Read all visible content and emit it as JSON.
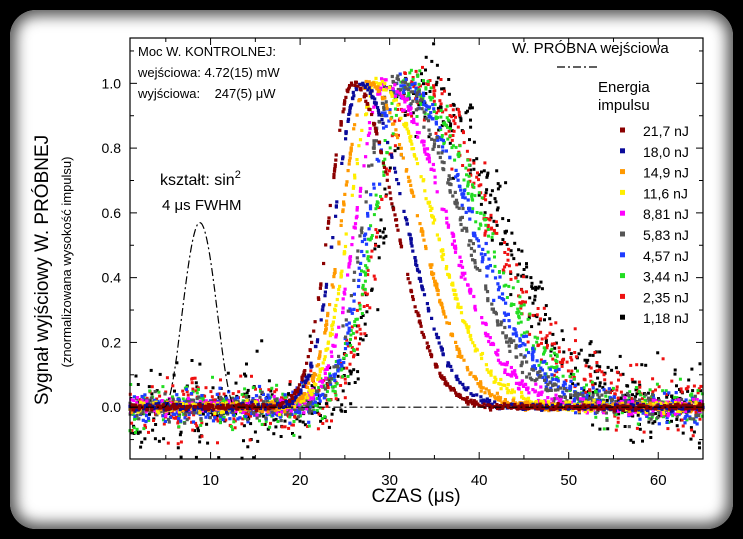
{
  "chart_data": {
    "type": "scatter",
    "xlabel": "CZAS (μs)",
    "ylabel": "Sygnał wyjściowy W. PRÓBNEJ",
    "ylabel2": "(znormalizowana wysokość impulsu)",
    "xlim": [
      1,
      65
    ],
    "ylim": [
      -0.16,
      1.14
    ],
    "xticks": [
      10,
      20,
      30,
      40,
      50,
      60
    ],
    "yticks": [
      0.0,
      0.2,
      0.4,
      0.6,
      0.8,
      1.0
    ],
    "ytick_labels": [
      "0.0",
      "0.2",
      "0.4",
      "0.6",
      "0.8",
      "1.0"
    ],
    "annotation_power": {
      "line1": "Moc W. KONTROLNEJ:",
      "line2": "wejściowa: 4.72(15) mW",
      "line3": "wyjściowa:    247(5) μW"
    },
    "annotation_shape": {
      "line1": "kształt: sin",
      "line1_sup": "2",
      "line2": "4 μs FWHM"
    },
    "input_legend": "W. PRÓBNA wejściowa",
    "legend_title_1": "Energia",
    "legend_title_2": "impulsu",
    "input_pulse": {
      "center": 8.8,
      "fwhm": 4,
      "peak": 0.57,
      "baseline": 0.0
    },
    "series": [
      {
        "name": "21,7 nJ",
        "color": "#8b0000",
        "peak_x": 25.9,
        "rise": 4.3,
        "fall": 7.6,
        "noise": 0.004
      },
      {
        "name": "18,0 nJ",
        "color": "#0a0a9a",
        "peak_x": 26.7,
        "rise": 4.5,
        "fall": 8.2,
        "noise": 0.005
      },
      {
        "name": "14,9 nJ",
        "color": "#ff9900",
        "peak_x": 27.6,
        "rise": 4.7,
        "fall": 9.0,
        "noise": 0.006
      },
      {
        "name": "11,6 nJ",
        "color": "#ffee00",
        "peak_x": 28.6,
        "rise": 5.0,
        "fall": 10.0,
        "noise": 0.008
      },
      {
        "name": "8,81 nJ",
        "color": "#ff00ff",
        "peak_x": 29.5,
        "rise": 5.2,
        "fall": 11.0,
        "noise": 0.012
      },
      {
        "name": "5,83 nJ",
        "color": "#555555",
        "peak_x": 30.5,
        "rise": 5.5,
        "fall": 12.0,
        "noise": 0.018
      },
      {
        "name": "4,57 nJ",
        "color": "#1e3cff",
        "peak_x": 31.2,
        "rise": 5.7,
        "fall": 12.6,
        "noise": 0.024
      },
      {
        "name": "3,44 nJ",
        "color": "#22dd22",
        "peak_x": 32.0,
        "rise": 5.9,
        "fall": 13.2,
        "noise": 0.032
      },
      {
        "name": "2,35 nJ",
        "color": "#ee1111",
        "peak_x": 32.7,
        "rise": 6.1,
        "fall": 13.6,
        "noise": 0.045
      },
      {
        "name": "1,18 nJ",
        "color": "#000000",
        "peak_x": 33.4,
        "rise": 6.2,
        "fall": 14.2,
        "noise": 0.065
      }
    ]
  }
}
